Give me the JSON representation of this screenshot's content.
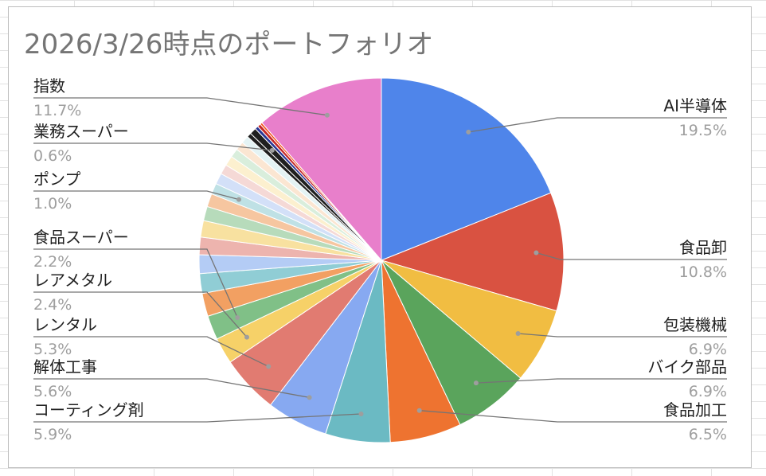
{
  "chart_data": {
    "type": "pie",
    "title": "2026/3/26時点のポートフォリオ",
    "slices": [
      {
        "label": "AI半導体",
        "value": 19.5,
        "pct_text": "19.5%",
        "color": "#4F85EA",
        "show_label": true
      },
      {
        "label": "食品卸",
        "value": 10.8,
        "pct_text": "10.8%",
        "color": "#D95241",
        "show_label": true
      },
      {
        "label": "包装機械",
        "value": 6.9,
        "pct_text": "6.9%",
        "color": "#F1BD42",
        "show_label": true
      },
      {
        "label": "バイク部品",
        "value": 6.9,
        "pct_text": "6.9%",
        "color": "#5AA45C",
        "show_label": true
      },
      {
        "label": "食品加工",
        "value": 6.5,
        "pct_text": "6.5%",
        "color": "#EE7330",
        "show_label": true
      },
      {
        "label": "コーティング剤",
        "value": 5.9,
        "pct_text": "5.9%",
        "color": "#6BBAC3",
        "show_label": true
      },
      {
        "label": "解体工事",
        "value": 5.6,
        "pct_text": "5.6%",
        "color": "#87A9F1",
        "show_label": true
      },
      {
        "label": "レンタル",
        "value": 5.3,
        "pct_text": "5.3%",
        "color": "#E17B71",
        "show_label": true
      },
      {
        "label": "レアメタル",
        "value": 2.4,
        "pct_text": "2.4%",
        "color": "#F6D168",
        "show_label": true
      },
      {
        "label": "食品スーパー",
        "value": 2.2,
        "pct_text": "2.2%",
        "color": "#80C087",
        "show_label": true
      },
      {
        "label": "",
        "value": 2.1,
        "pct_text": "",
        "color": "#F2A062",
        "show_label": false
      },
      {
        "label": "",
        "value": 1.8,
        "pct_text": "",
        "color": "#90CDD5",
        "show_label": false
      },
      {
        "label": "",
        "value": 1.7,
        "pct_text": "",
        "color": "#B4CCF5",
        "show_label": false
      },
      {
        "label": "",
        "value": 1.6,
        "pct_text": "",
        "color": "#EDB4AE",
        "show_label": false
      },
      {
        "label": "",
        "value": 1.5,
        "pct_text": "",
        "color": "#F8E1A0",
        "show_label": false
      },
      {
        "label": "",
        "value": 1.3,
        "pct_text": "",
        "color": "#B7DBBB",
        "show_label": false
      },
      {
        "label": "",
        "value": 1.2,
        "pct_text": "",
        "color": "#F6C6A0",
        "show_label": false
      },
      {
        "label": "ポンプ",
        "value": 1.0,
        "pct_text": "1.0%",
        "color": "#BFE1E5",
        "show_label": true
      },
      {
        "label": "",
        "value": 1.0,
        "pct_text": "",
        "color": "#D3E0F8",
        "show_label": false
      },
      {
        "label": "",
        "value": 0.9,
        "pct_text": "",
        "color": "#F5D9D6",
        "show_label": false
      },
      {
        "label": "",
        "value": 0.9,
        "pct_text": "",
        "color": "#FCF0CF",
        "show_label": false
      },
      {
        "label": "",
        "value": 0.8,
        "pct_text": "",
        "color": "#D9EEDC",
        "show_label": false
      },
      {
        "label": "",
        "value": 0.8,
        "pct_text": "",
        "color": "#FBE6D2",
        "show_label": false
      },
      {
        "label": "",
        "value": 0.7,
        "pct_text": "",
        "color": "#E4F3F4",
        "show_label": false
      },
      {
        "label": "",
        "value": 0.4,
        "pct_text": "",
        "color": "#1F1F1F",
        "show_label": false
      },
      {
        "label": "業務スーパー",
        "value": 0.6,
        "pct_text": "0.6%",
        "color": "#1F1F1F",
        "show_label": true
      },
      {
        "label": "",
        "value": 0.3,
        "pct_text": "",
        "color": "#283593",
        "show_label": false
      },
      {
        "label": "",
        "value": 0.3,
        "pct_text": "",
        "color": "#C62828",
        "show_label": false
      },
      {
        "label": "",
        "value": 0.2,
        "pct_text": "",
        "color": "#F4511E",
        "show_label": false
      },
      {
        "label": "指数",
        "value": 11.7,
        "pct_text": "11.7%",
        "color": "#E87FCB",
        "show_label": true
      }
    ]
  }
}
